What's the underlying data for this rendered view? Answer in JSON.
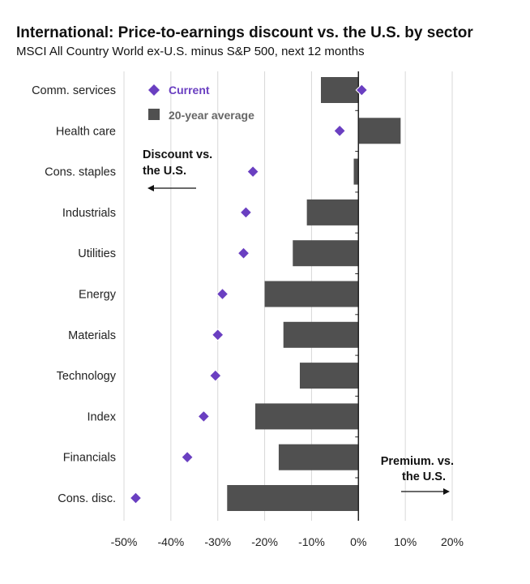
{
  "chart_data": {
    "type": "bar",
    "title": "International: Price-to-earnings discount vs. the U.S. by sector",
    "subtitle": "MSCI All Country World ex-U.S. minus S&P 500, next 12 months",
    "orientation": "horizontal",
    "categories": [
      "Comm. services",
      "Health care",
      "Cons. staples",
      "Industrials",
      "Utilities",
      "Energy",
      "Materials",
      "Technology",
      "Index",
      "Financials",
      "Cons. disc."
    ],
    "series": [
      {
        "name": "20-year average",
        "mark": "bar",
        "color": "#505050",
        "values": [
          -8,
          9,
          -1,
          -11,
          -14,
          -20,
          -16,
          -12.5,
          -22,
          -17,
          -28
        ]
      },
      {
        "name": "Current",
        "mark": "diamond",
        "color": "#6a3fc1",
        "values": [
          0.7,
          -4,
          -22.5,
          -24,
          -24.5,
          -29,
          -30,
          -30.5,
          -33,
          -36.5,
          -47.5
        ]
      }
    ],
    "xlim": [
      -50,
      20
    ],
    "xticks": [
      -50,
      -40,
      -30,
      -20,
      -10,
      0,
      10,
      20
    ],
    "xtick_labels": [
      "-50%",
      "-40%",
      "-30%",
      "-20%",
      "-10%",
      "0%",
      "10%",
      "20%"
    ],
    "grid": "vertical",
    "legend": "top-left",
    "annotations": {
      "discount": [
        "Discount vs.",
        "the U.S."
      ],
      "premium": [
        "Premium. vs.",
        "the U.S."
      ]
    }
  }
}
